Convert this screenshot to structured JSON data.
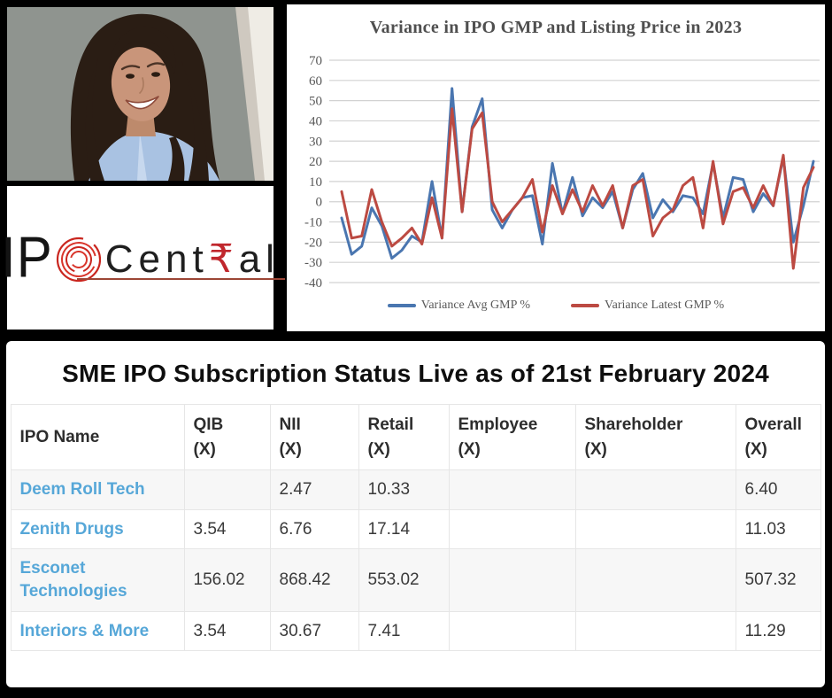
{
  "photo": {
    "description": "portrait photo of smiling woman with long dark hair wearing light blue blazer"
  },
  "logo": {
    "part_ip": "IP",
    "part_cent": "Cent",
    "part_rupee": "₹",
    "part_al": "al",
    "accent_color": "#c9261f"
  },
  "chart_data": {
    "type": "line",
    "title": "Variance in IPO GMP and Listing Price in 2023",
    "xlabel": "",
    "ylabel": "",
    "x_axis_labels": "none",
    "ylim": [
      -40,
      70
    ],
    "yticks": [
      70,
      60,
      50,
      40,
      30,
      20,
      10,
      0,
      -10,
      -20,
      -30,
      -40
    ],
    "grid": true,
    "legend_position": "bottom",
    "grid_color": "#d2d2d2",
    "axis_label_color": "#595959",
    "series": [
      {
        "name": "Variance Avg GMP %",
        "color": "#4a76b0",
        "values": [
          -8,
          -26,
          -22,
          -3,
          -12,
          -28,
          -24,
          -17,
          -20,
          10,
          -18,
          56,
          -5,
          37,
          51,
          -4,
          -13,
          -4,
          2,
          3,
          -21,
          19,
          -6,
          12,
          -7,
          2,
          -3,
          5,
          -13,
          6,
          14,
          -8,
          1,
          -5,
          3,
          2,
          -6,
          19,
          -8,
          12,
          11,
          -5,
          4,
          -2,
          22,
          -20,
          -2,
          20
        ]
      },
      {
        "name": "Variance Latest GMP %",
        "color": "#bc4a42",
        "values": [
          5,
          -18,
          -17,
          6,
          -10,
          -22,
          -18,
          -13,
          -21,
          2,
          -18,
          46,
          -5,
          36,
          44,
          0,
          -10,
          -4,
          2,
          11,
          -15,
          8,
          -6,
          6,
          -5,
          8,
          -2,
          8,
          -13,
          8,
          11,
          -17,
          -8,
          -4,
          8,
          12,
          -13,
          20,
          -11,
          5,
          7,
          -3,
          8,
          -2,
          23,
          -33,
          7,
          17
        ]
      }
    ]
  },
  "table": {
    "title": "SME IPO Subscription Status Live as of 21st February 2024",
    "link_color": "#56a7d8",
    "columns": [
      {
        "label": "IPO Name",
        "unit": ""
      },
      {
        "label": "QIB",
        "unit": "(X)"
      },
      {
        "label": "NII",
        "unit": "(X)"
      },
      {
        "label": "Retail",
        "unit": "(X)"
      },
      {
        "label": "Employee",
        "unit": "(X)"
      },
      {
        "label": "Shareholder",
        "unit": "(X)"
      },
      {
        "label": "Overall",
        "unit": "(X)"
      }
    ],
    "rows": [
      {
        "name": "Deem Roll Tech",
        "qib": "",
        "nii": "2.47",
        "retail": "10.33",
        "employee": "",
        "shareholder": "",
        "overall": "6.40"
      },
      {
        "name": "Zenith Drugs",
        "qib": "3.54",
        "nii": "6.76",
        "retail": "17.14",
        "employee": "",
        "shareholder": "",
        "overall": "11.03"
      },
      {
        "name": "Esconet Technologies",
        "qib": "156.02",
        "nii": "868.42",
        "retail": "553.02",
        "employee": "",
        "shareholder": "",
        "overall": "507.32"
      },
      {
        "name": "Interiors & More",
        "qib": "3.54",
        "nii": "30.67",
        "retail": "7.41",
        "employee": "",
        "shareholder": "",
        "overall": "11.29"
      }
    ]
  }
}
